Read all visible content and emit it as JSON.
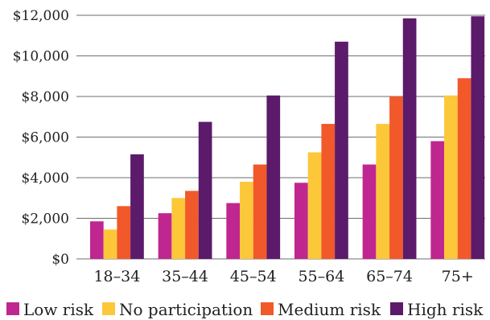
{
  "chart_data": {
    "type": "bar",
    "categories": [
      "18–34",
      "35–44",
      "45–54",
      "55–64",
      "65–74",
      "75+"
    ],
    "series": [
      {
        "name": "Low risk",
        "color": "#c0268f",
        "values": [
          1850,
          2250,
          2750,
          3750,
          4650,
          5800
        ]
      },
      {
        "name": "No participation",
        "color": "#fcc83a",
        "values": [
          1450,
          3000,
          3800,
          5250,
          6650,
          8050
        ]
      },
      {
        "name": "Medium risk",
        "color": "#f1592a",
        "values": [
          2600,
          3350,
          4650,
          6650,
          8000,
          8900
        ]
      },
      {
        "name": "High risk",
        "color": "#5c1a6b",
        "values": [
          5150,
          6750,
          8050,
          10700,
          11850,
          11950
        ]
      }
    ],
    "yticks": [
      "$0",
      "$2,000",
      "$4,000",
      "$6,000",
      "$8,000",
      "$10,000",
      "$12,000"
    ],
    "ylim": [
      0,
      12000
    ],
    "grid": true,
    "legend_position": "bottom",
    "title": "",
    "xlabel": "",
    "ylabel": ""
  }
}
